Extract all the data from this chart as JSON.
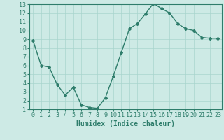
{
  "x": [
    0,
    1,
    2,
    3,
    4,
    5,
    6,
    7,
    8,
    9,
    10,
    11,
    12,
    13,
    14,
    15,
    16,
    17,
    18,
    19,
    20,
    21,
    22,
    23
  ],
  "y": [
    8.8,
    6.0,
    5.8,
    3.8,
    2.6,
    3.5,
    1.5,
    1.2,
    1.1,
    2.3,
    4.8,
    7.5,
    10.2,
    10.8,
    11.9,
    13.1,
    12.5,
    12.0,
    10.8,
    10.2,
    10.0,
    9.2,
    9.1,
    9.1
  ],
  "line_color": "#2e7d6b",
  "marker": "D",
  "marker_size": 2,
  "bg_color": "#cdeae5",
  "grid_color": "#a8d5ce",
  "xlabel": "Humidex (Indice chaleur)",
  "xlabel_fontsize": 7,
  "tick_fontsize": 6,
  "ylim": [
    1,
    13
  ],
  "xlim": [
    -0.5,
    23.5
  ],
  "yticks": [
    1,
    2,
    3,
    4,
    5,
    6,
    7,
    8,
    9,
    10,
    11,
    12,
    13
  ],
  "xticks": [
    0,
    1,
    2,
    3,
    4,
    5,
    6,
    7,
    8,
    9,
    10,
    11,
    12,
    13,
    14,
    15,
    16,
    17,
    18,
    19,
    20,
    21,
    22,
    23
  ],
  "linewidth": 1.0
}
